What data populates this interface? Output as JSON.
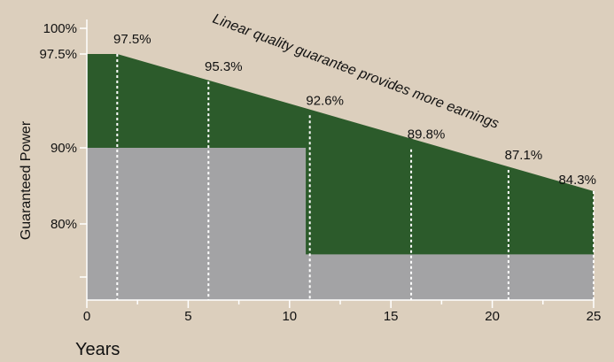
{
  "chart_data": {
    "type": "area",
    "title": "",
    "xlabel": "Years",
    "ylabel": "Guaranteed Power",
    "xlim": [
      0,
      25
    ],
    "ylim": [
      70,
      100
    ],
    "x_ticks": [
      0,
      5,
      10,
      15,
      20,
      25
    ],
    "y_ticks": [
      {
        "value": 100,
        "label": "100%"
      },
      {
        "value": 97.5,
        "label": "97.5%"
      },
      {
        "value": 90,
        "label": "90%"
      },
      {
        "value": 80,
        "label": "80%"
      }
    ],
    "annotation": "Linear quality guarantee provides more earnings",
    "series": [
      {
        "name": "",
        "kind": "linear-guarantee",
        "color": "#2c5b2b",
        "x": [
          0,
          1.5,
          25
        ],
        "y": [
          97.5,
          97.5,
          84.3
        ]
      },
      {
        "name": "",
        "kind": "step-guarantee",
        "color": "#a3a3a5",
        "x": [
          0,
          10.8,
          10.8,
          25
        ],
        "y": [
          90,
          90,
          76,
          76
        ]
      }
    ],
    "points": [
      {
        "x": 1.5,
        "y": 97.5,
        "label": "97.5%"
      },
      {
        "x": 6,
        "y": 95.3,
        "label": "95.3%"
      },
      {
        "x": 11,
        "y": 92.6,
        "label": "92.6%"
      },
      {
        "x": 16,
        "y": 89.8,
        "label": "89.8%"
      },
      {
        "x": 20.8,
        "y": 87.1,
        "label": "87.1%"
      },
      {
        "x": 25,
        "y": 84.3,
        "label": "84.3%"
      }
    ],
    "grid": false,
    "legend": "none"
  }
}
